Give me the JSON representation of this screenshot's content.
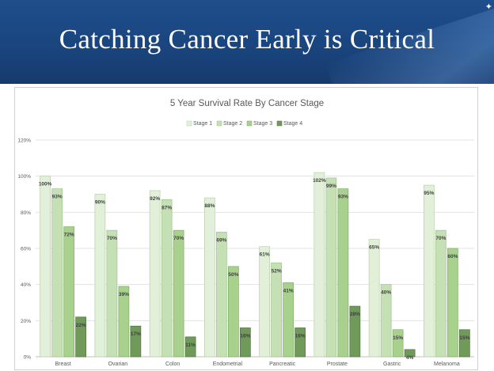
{
  "slide": {
    "title": "Catching Cancer Early is Critical"
  },
  "colors": {
    "banner": "#1a457e",
    "stage_fills": [
      "#e2f0d9",
      "#c5e0b4",
      "#a9d18e",
      "#6f9a5a"
    ],
    "stage_strokes": [
      "#b7d1a7",
      "#9fc48a",
      "#7fae63",
      "#50733f"
    ]
  },
  "chart_data": {
    "type": "bar",
    "title": "5 Year Survival Rate By Cancer Stage",
    "categories": [
      "Breast",
      "Ovarian",
      "Colon",
      "Endometrial",
      "Pancreatic",
      "Prostate",
      "Gastric",
      "Melanoma"
    ],
    "series": [
      {
        "name": "Stage 1",
        "values": [
          100,
          90,
          92,
          88,
          61,
          102,
          65,
          95
        ],
        "labels": [
          "100%",
          "90%",
          "92%",
          "88%",
          "61%",
          "102%",
          "65%",
          "95%"
        ]
      },
      {
        "name": "Stage 2",
        "values": [
          93,
          70,
          87,
          69,
          52,
          99,
          40,
          70
        ],
        "labels": [
          "93%",
          "70%",
          "87%",
          "69%",
          "52%",
          "99%",
          "40%",
          "70%"
        ]
      },
      {
        "name": "Stage 3",
        "values": [
          72,
          39,
          70,
          50,
          41,
          93,
          15,
          60
        ],
        "labels": [
          "72%",
          "39%",
          "70%",
          "50%",
          "41%",
          "93%",
          "15%",
          "60%"
        ]
      },
      {
        "name": "Stage 4",
        "values": [
          22,
          17,
          11,
          16,
          16,
          28,
          4,
          15
        ],
        "labels": [
          "22%",
          "17%",
          "11%",
          "16%",
          "16%",
          "28%",
          "4%",
          "15%"
        ]
      }
    ],
    "y_ticks": [
      0,
      20,
      40,
      60,
      80,
      100,
      120
    ],
    "y_tick_labels": [
      "0%",
      "20%",
      "40%",
      "60%",
      "80%",
      "100%",
      "120%"
    ],
    "ylim": [
      0,
      120
    ],
    "grid": true,
    "legend_position": "top"
  }
}
